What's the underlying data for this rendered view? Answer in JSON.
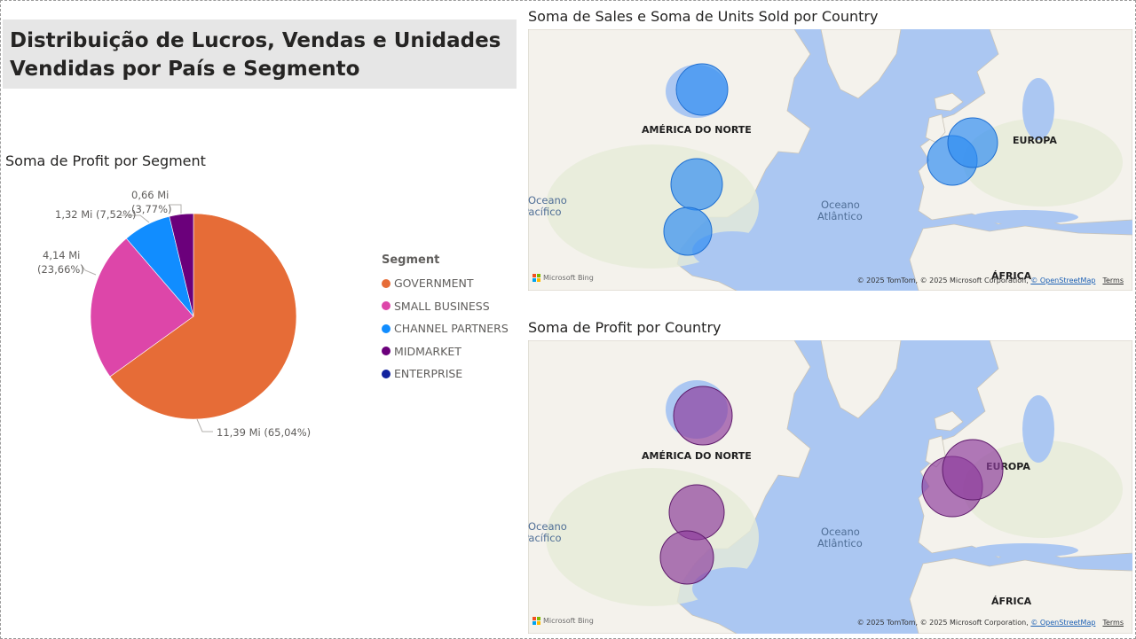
{
  "page": {
    "title": "Distribuição de Lucros, Vendas e Unidades Vendidas por País e Segmento"
  },
  "colors": {
    "government": "#e66c37",
    "small_business": "#dd46a9",
    "channel_partners": "#118dff",
    "midmarket": "#6b007b",
    "enterprise": "#12239e",
    "map_sales_bubble": "#2e8cf2",
    "map_profit_bubble": "#8e3c9c",
    "water": "#abc7f2",
    "land": "#f4f2ec"
  },
  "pie": {
    "title": "Soma de Profit por Segment",
    "legend_title": "Segment",
    "chart_data": {
      "type": "pie",
      "title": "Soma de Profit por Segment",
      "unit": "Mi",
      "slices": [
        {
          "name": "GOVERNMENT",
          "value": 11.39,
          "percent": 65.04,
          "label": "11,39 Mi (65,04%)"
        },
        {
          "name": "SMALL BUSINESS",
          "value": 4.14,
          "percent": 23.66,
          "label": "4,14 Mi (23,66%)"
        },
        {
          "name": "CHANNEL PARTNERS",
          "value": 1.32,
          "percent": 7.52,
          "label": "1,32 Mi (7,52%)"
        },
        {
          "name": "MIDMARKET",
          "value": 0.66,
          "percent": 3.77,
          "label": "0,66 Mi (3,77%)"
        },
        {
          "name": "ENTERPRISE",
          "value": 0.0,
          "percent": 0.0,
          "label": ""
        }
      ],
      "legend_position": "right"
    },
    "label_parts": {
      "government": [
        "11,39 Mi (65,04%)"
      ],
      "small_business": [
        "4,14 Mi",
        "(23,66%)"
      ],
      "channel_partners": [
        "1,32 Mi (7,52%)"
      ],
      "midmarket": [
        "0,66 Mi",
        "(3,77%)"
      ]
    }
  },
  "map_sales": {
    "title": "Soma de Sales e Soma de Units Sold por Country",
    "labels": {
      "north_america": "AMÉRICA DO NORTE",
      "europe": "EUROPA",
      "africa": "ÁFRICA",
      "atlantic_1": "Oceano",
      "atlantic_2": "Atlântico",
      "pacific_1": "Oceano",
      "pacific_2": "Pacífico"
    },
    "attribution": "Microsoft Bing",
    "copyright": "© 2025 TomTom, © 2025 Microsoft Corporation, ",
    "osm": "© OpenStreetMap",
    "terms": "Terms"
  },
  "map_profit": {
    "title": "Soma de Profit por Country",
    "labels": {
      "north_america": "AMÉRICA DO NORTE",
      "europe": "EUROPA",
      "africa": "ÁFRICA",
      "atlantic_1": "Oceano",
      "atlantic_2": "Atlântico",
      "pacific_1": "Oceano",
      "pacific_2": "Pacífico"
    },
    "attribution": "Microsoft Bing",
    "copyright": "© 2025 TomTom, © 2025 Microsoft Corporation, ",
    "osm": "© OpenStreetMap",
    "terms": "Terms"
  }
}
